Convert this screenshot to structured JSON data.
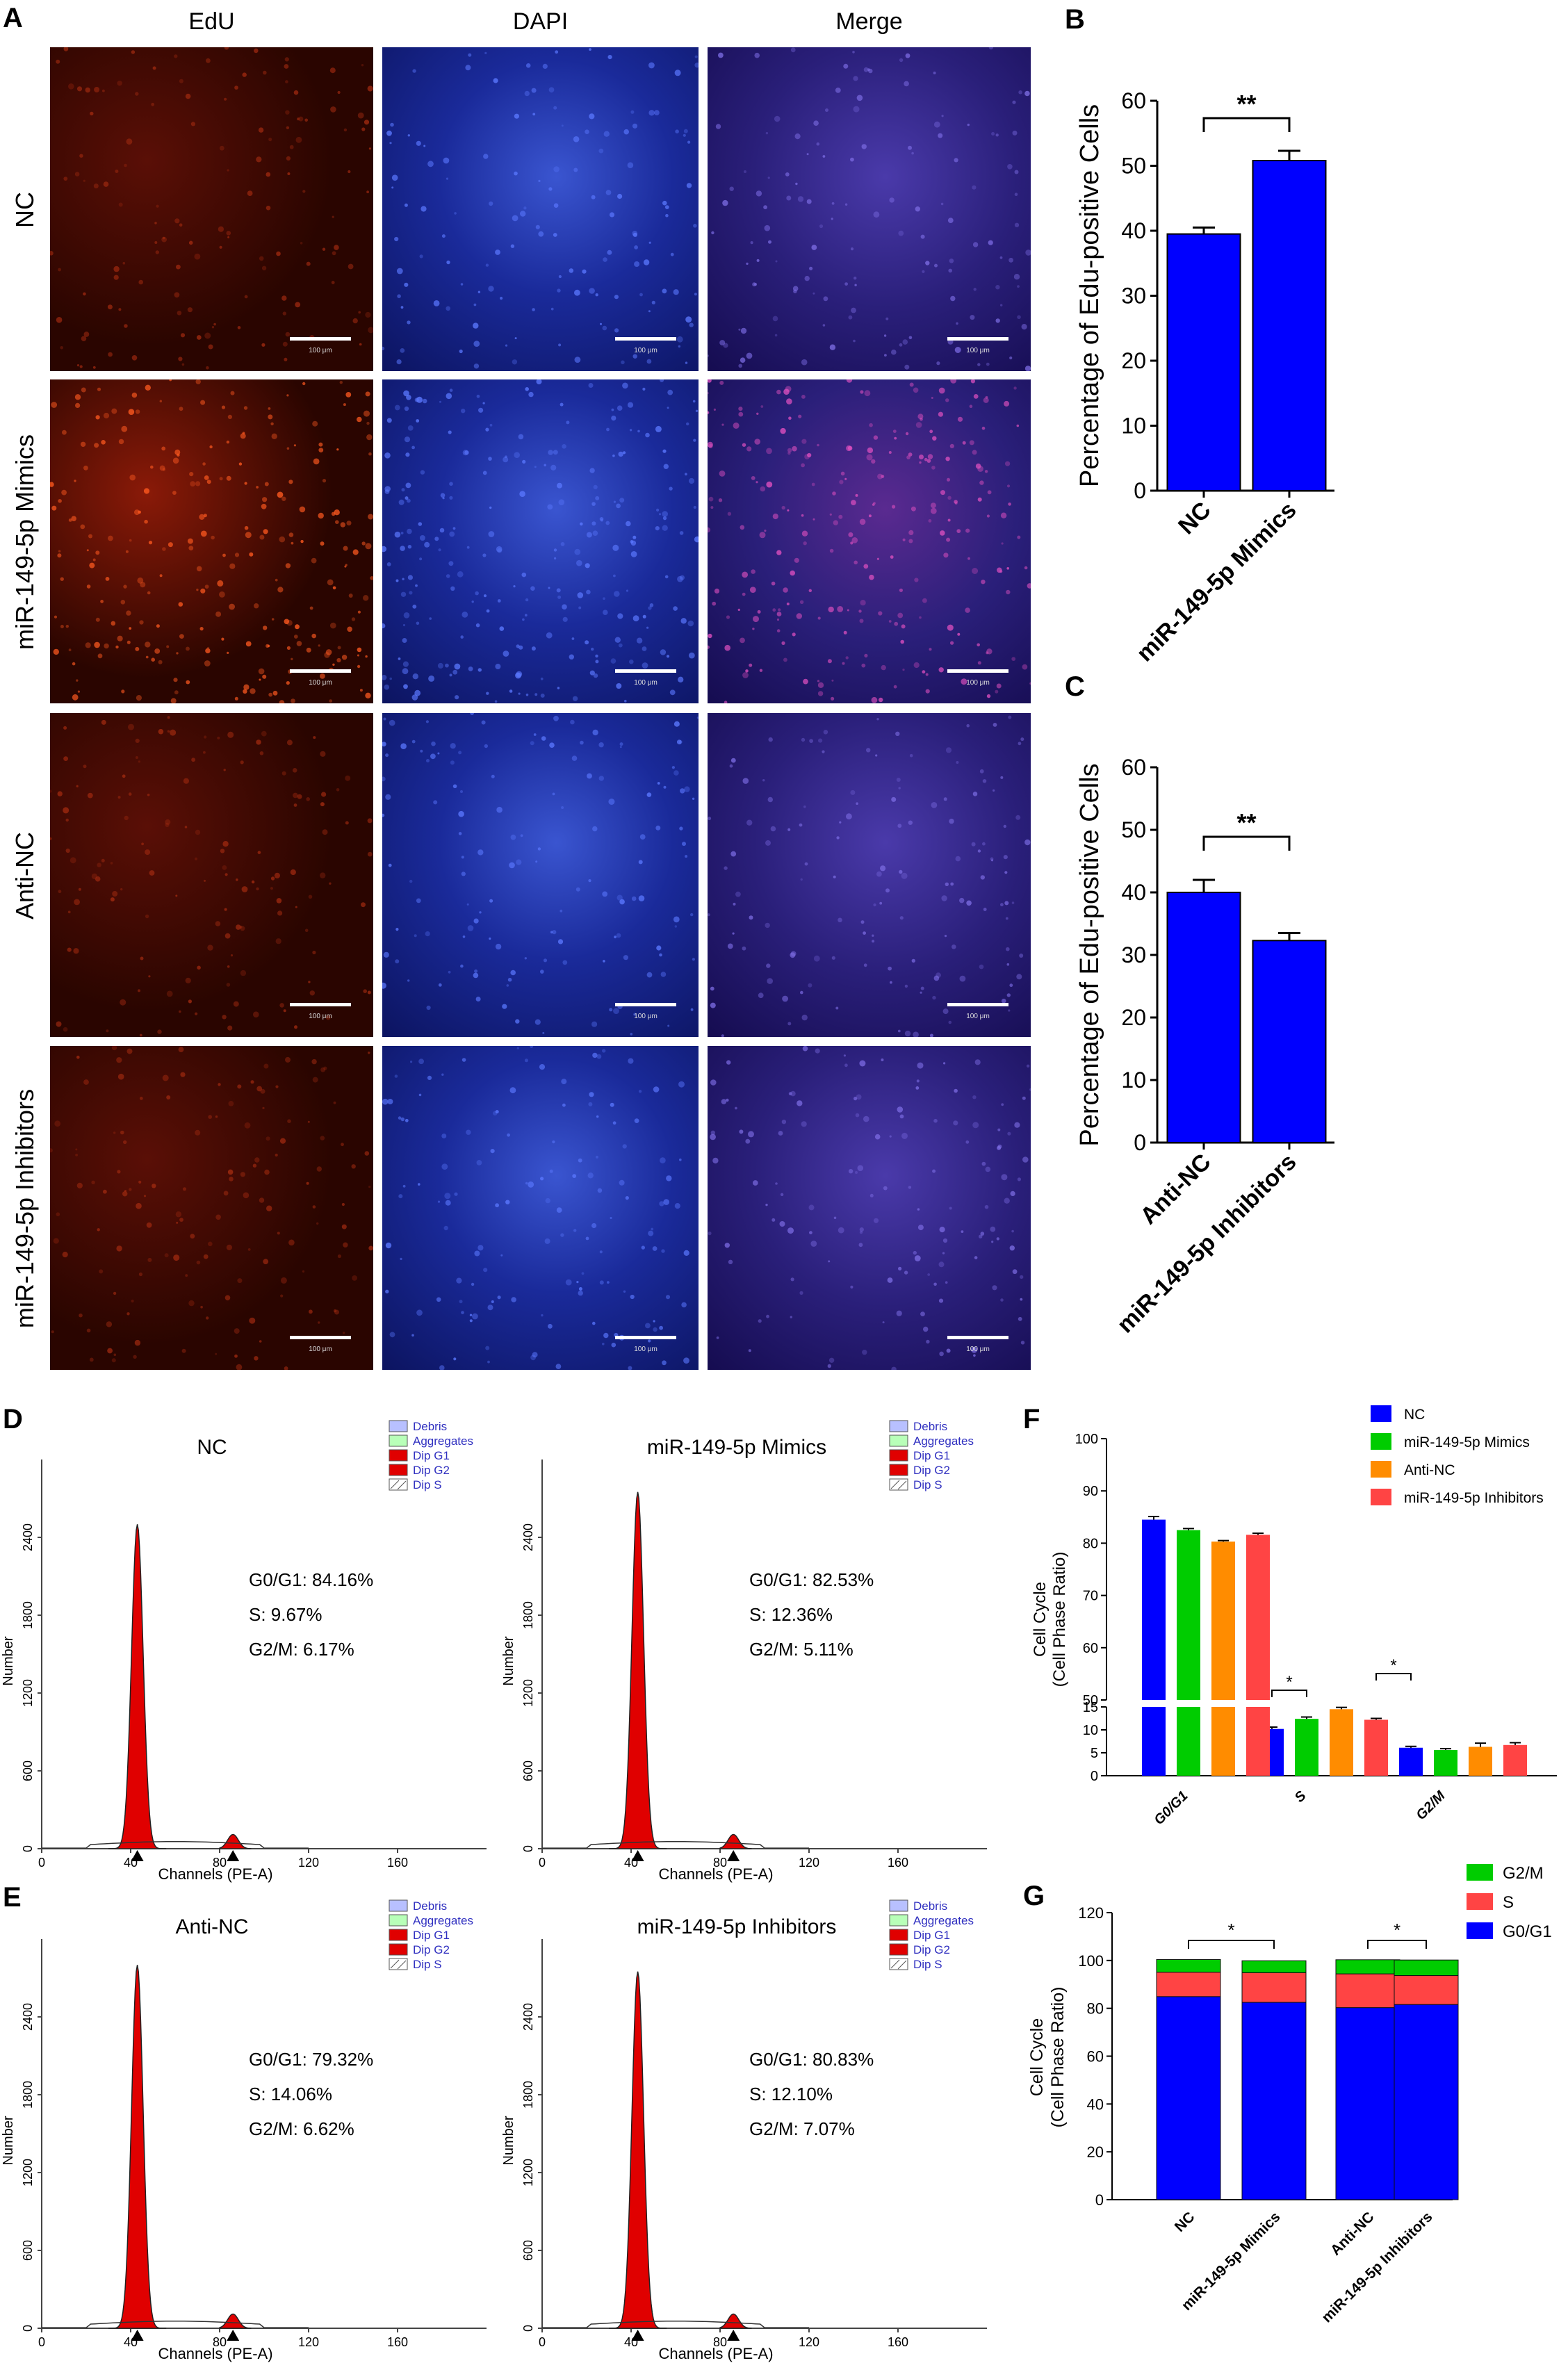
{
  "panel_letters": [
    "A",
    "B",
    "C",
    "D",
    "E",
    "F",
    "G"
  ],
  "micrographs": {
    "columns": [
      "EdU",
      "DAPI",
      "Merge"
    ],
    "rows": [
      "NC",
      "miR-149-5p Mimics",
      "Anti-NC",
      "miR-149-5p Inhibitors"
    ],
    "scale_bar_text": "100 μm",
    "colors": {
      "edu": "#5a0f06",
      "edu_bright": "#8a1a08",
      "dapi": "#1a2a9a",
      "merge": "#2a1f7a"
    }
  },
  "edu_b": {
    "chart_data": {
      "type": "bar",
      "categories": [
        "NC",
        "miR-149-5p Mimics"
      ],
      "values": [
        39.5,
        50.8
      ],
      "errors": [
        1.0,
        1.5
      ],
      "ylabel": "Percentage of Edu-positive Cells",
      "ylim": [
        0,
        60
      ],
      "yticks": [
        0,
        10,
        20,
        30,
        40,
        50,
        60
      ],
      "significance": "**",
      "bar_color": "#0000ff"
    }
  },
  "edu_c": {
    "chart_data": {
      "type": "bar",
      "categories": [
        "Anti-NC",
        "miR-149-5p Inhibitors"
      ],
      "values": [
        40.0,
        32.3
      ],
      "errors": [
        2.0,
        1.2
      ],
      "ylabel": "Percentage of Edu-positive Cells",
      "ylim": [
        0,
        60
      ],
      "yticks": [
        0,
        10,
        20,
        30,
        40,
        50,
        60
      ],
      "significance": "**",
      "bar_color": "#0000ff"
    }
  },
  "flow": {
    "legend": [
      "Debris",
      "Aggregates",
      "Dip G1",
      "Dip G2",
      "Dip S"
    ],
    "legend_colors": [
      "#b8c0ff",
      "#b8ffb8",
      "#e00000",
      "#e00000",
      "#ffffff"
    ],
    "xlabel": "Channels (PE-A)",
    "ylabel": "Number",
    "xticks": [
      0,
      40,
      80,
      120,
      160
    ],
    "yticks": [
      0,
      600,
      1200,
      1800,
      2400
    ],
    "panels": [
      {
        "title": "NC",
        "g0g1": "G0/G1: 84.16%",
        "s": "S: 9.67%",
        "g2m": "G2/M: 6.17%",
        "peak": 2500
      },
      {
        "title": "miR-149-5p Mimics",
        "g0g1": "G0/G1: 82.53%",
        "s": "S: 12.36%",
        "g2m": "G2/M: 5.11%",
        "peak": 2750
      },
      {
        "title": "Anti-NC",
        "g0g1": "G0/G1: 79.32%",
        "s": "S: 14.06%",
        "g2m": "G2/M: 6.62%",
        "peak": 2800
      },
      {
        "title": "miR-149-5p Inhibitors",
        "g0g1": "G0/G1: 80.83%",
        "s": "S: 12.10%",
        "g2m": "G2/M: 7.07%",
        "peak": 2750
      }
    ]
  },
  "cycle_f": {
    "chart_data": {
      "type": "bar",
      "categories": [
        "G0/G1",
        "S",
        "G2/M"
      ],
      "series": [
        {
          "name": "NC",
          "color": "#0000ff",
          "values": [
            84.5,
            10.2,
            6.1
          ],
          "errors": [
            0.6,
            0.4,
            0.3
          ]
        },
        {
          "name": "miR-149-5p Mimics",
          "color": "#00cc00",
          "values": [
            82.5,
            12.4,
            5.6
          ],
          "errors": [
            0.3,
            0.4,
            0.3
          ]
        },
        {
          "name": "Anti-NC",
          "color": "#ff8c00",
          "values": [
            80.3,
            14.5,
            6.3
          ],
          "errors": [
            0.2,
            0.4,
            0.8
          ]
        },
        {
          "name": "miR-149-5p Inhibitors",
          "color": "#ff4444",
          "values": [
            81.6,
            12.2,
            6.7
          ],
          "errors": [
            0.3,
            0.3,
            0.5
          ]
        }
      ],
      "ylabel": "Cell Cycle\n(Cell Phase Ratio)",
      "ylim": [
        0,
        100
      ],
      "axis_break": [
        15,
        50
      ],
      "upper_ticks": [
        50,
        60,
        70,
        80,
        90,
        100
      ],
      "lower_ticks": [
        0,
        5,
        10,
        15
      ],
      "significance": [
        "*",
        "*"
      ]
    }
  },
  "cycle_g": {
    "chart_data": {
      "type": "bar",
      "stacked": true,
      "categories": [
        "NC",
        "miR-149-5p Mimics",
        "Anti-NC",
        "miR-149-5p Inhibitors"
      ],
      "series": [
        {
          "name": "G0/G1",
          "color": "#0000ff",
          "values": [
            84.9,
            82.5,
            80.3,
            81.6
          ]
        },
        {
          "name": "S",
          "color": "#ff4444",
          "values": [
            10.2,
            12.4,
            14.1,
            12.1
          ]
        },
        {
          "name": "G2/M",
          "color": "#00cc00",
          "values": [
            5.3,
            5.0,
            5.9,
            6.5
          ]
        }
      ],
      "legend_order": [
        "G2/M",
        "S",
        "G0/G1"
      ],
      "ylabel": "Cell Cycle\n(Cell Phase Ratio)",
      "ylim": [
        0,
        120
      ],
      "yticks": [
        0,
        20,
        40,
        60,
        80,
        100,
        120
      ],
      "significance": [
        "*",
        "*"
      ]
    }
  }
}
